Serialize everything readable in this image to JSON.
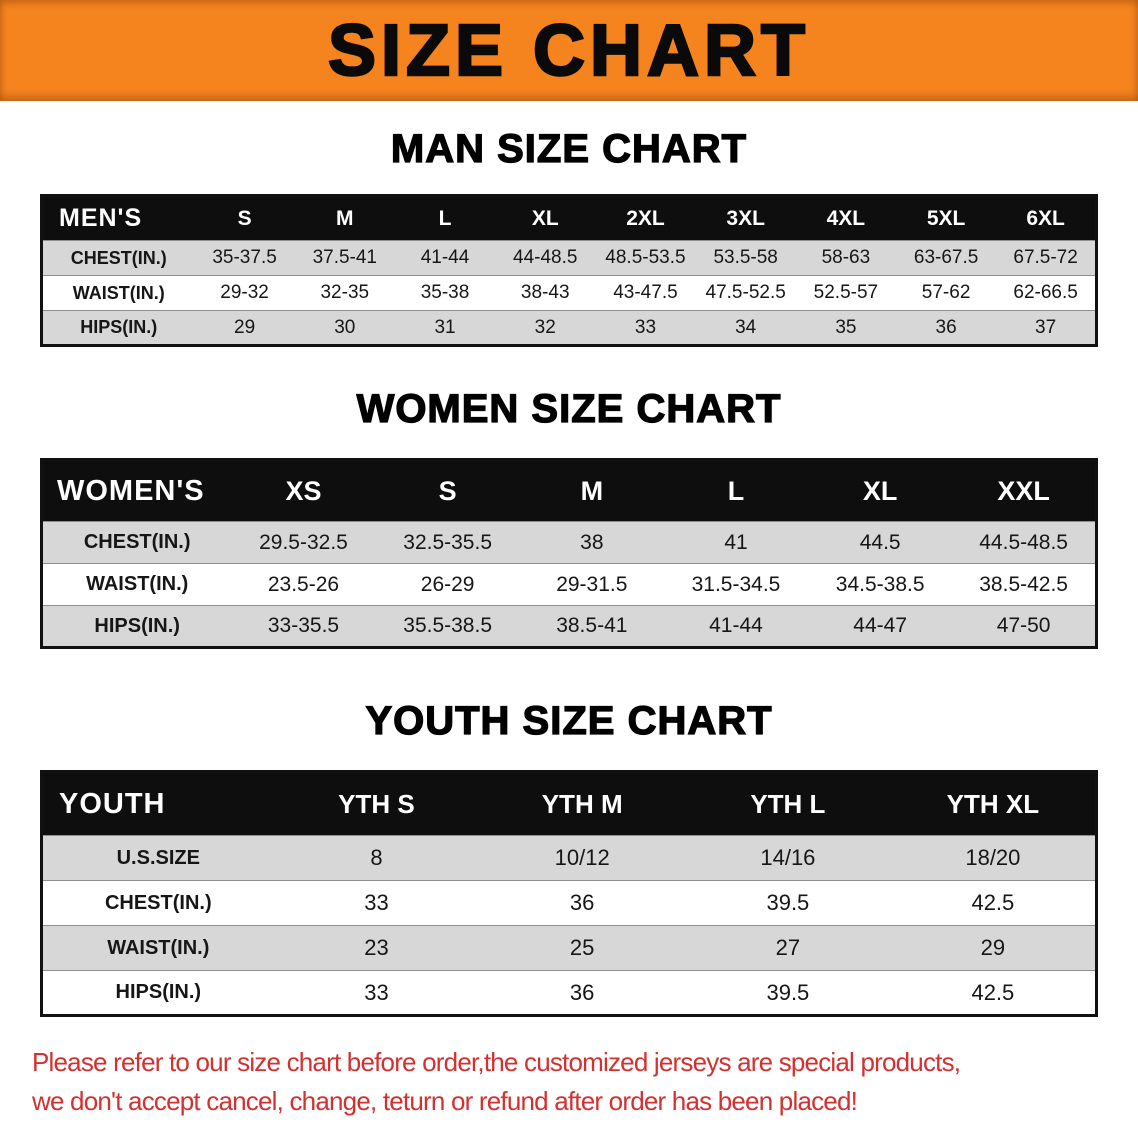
{
  "banner": {
    "title": "SIZE CHART"
  },
  "sections": [
    {
      "id": "men",
      "heading": "MAN SIZE CHART",
      "table": {
        "header": [
          "MEN'S",
          "S",
          "M",
          "L",
          "XL",
          "2XL",
          "3XL",
          "4XL",
          "5XL",
          "6XL"
        ],
        "rows": [
          [
            "CHEST(IN.)",
            "35-37.5",
            "37.5-41",
            "41-44",
            "44-48.5",
            "48.5-53.5",
            "53.5-58",
            "58-63",
            "63-67.5",
            "67.5-72"
          ],
          [
            "WAIST(IN.)",
            "29-32",
            "32-35",
            "35-38",
            "38-43",
            "43-47.5",
            "47.5-52.5",
            "52.5-57",
            "57-62",
            "62-66.5"
          ],
          [
            "HIPS(IN.)",
            "29",
            "30",
            "31",
            "32",
            "33",
            "34",
            "35",
            "36",
            "37"
          ]
        ]
      }
    },
    {
      "id": "women",
      "heading": "WOMEN SIZE CHART",
      "table": {
        "header": [
          "WOMEN'S",
          "XS",
          "S",
          "M",
          "L",
          "XL",
          "XXL"
        ],
        "rows": [
          [
            "CHEST(IN.)",
            "29.5-32.5",
            "32.5-35.5",
            "38",
            "41",
            "44.5",
            "44.5-48.5"
          ],
          [
            "WAIST(IN.)",
            "23.5-26",
            "26-29",
            "29-31.5",
            "31.5-34.5",
            "34.5-38.5",
            "38.5-42.5"
          ],
          [
            "HIPS(IN.)",
            "33-35.5",
            "35.5-38.5",
            "38.5-41",
            "41-44",
            "44-47",
            "47-50"
          ]
        ]
      }
    },
    {
      "id": "youth",
      "heading": "YOUTH SIZE CHART",
      "table": {
        "header": [
          "YOUTH",
          "YTH S",
          "YTH M",
          "YTH L",
          "YTH XL"
        ],
        "rows": [
          [
            "U.S.SIZE",
            "8",
            "10/12",
            "14/16",
            "18/20"
          ],
          [
            "CHEST(IN.)",
            "33",
            "36",
            "39.5",
            "42.5"
          ],
          [
            "WAIST(IN.)",
            "23",
            "25",
            "27",
            "29"
          ],
          [
            "HIPS(IN.)",
            "33",
            "36",
            "39.5",
            "42.5"
          ]
        ]
      }
    }
  ],
  "disclaimer": {
    "line1": "Please refer to our size chart before order,the customized jerseys are special products,",
    "line2": "we don't accept cancel, change, teturn or refund after order has been placed!"
  },
  "colors": {
    "banner_orange": "#f5841f",
    "header_black": "#0e0e0e",
    "row_gray": "#d7d7d7",
    "disclaimer_red": "#d43030"
  }
}
